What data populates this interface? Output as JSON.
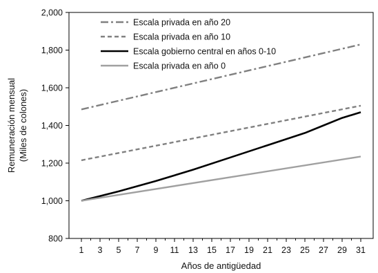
{
  "chart_data": {
    "type": "line",
    "xlabel": "Años de antigüedad",
    "ylabel": [
      "Remuneración mensual",
      "(Miles de colones)"
    ],
    "xlim": [
      1,
      31
    ],
    "ylim": [
      800,
      2000
    ],
    "xticks": [
      "1",
      "3",
      "5",
      "7",
      "9",
      "11",
      "13",
      "15",
      "17",
      "19",
      "21",
      "23",
      "25",
      "27",
      "29",
      "31"
    ],
    "yticks": [
      "800",
      "1,000",
      "1,200",
      "1,400",
      "1,600",
      "1,800",
      "2,000"
    ],
    "grid": false,
    "legend_position": "top-left",
    "series": [
      {
        "name": "Escala privada en año 20",
        "color": "#808080",
        "dash": "dash-dot",
        "x": [
          1,
          31
        ],
        "values": [
          1485,
          1830
        ]
      },
      {
        "name": "Escala privada en año 10",
        "color": "#808080",
        "dash": "dash",
        "x": [
          1,
          31
        ],
        "values": [
          1215,
          1505
        ]
      },
      {
        "name": "Escala gobierno central en años 0-10",
        "color": "#000000",
        "dash": "solid",
        "x": [
          1,
          5,
          9,
          13,
          17,
          21,
          25,
          27,
          29,
          31
        ],
        "values": [
          1000,
          1050,
          1105,
          1165,
          1230,
          1295,
          1360,
          1400,
          1440,
          1470
        ]
      },
      {
        "name": "Escala privada en año 0",
        "color": "#a0a0a0",
        "dash": "solid",
        "x": [
          1,
          31
        ],
        "values": [
          1000,
          1235
        ]
      }
    ]
  }
}
